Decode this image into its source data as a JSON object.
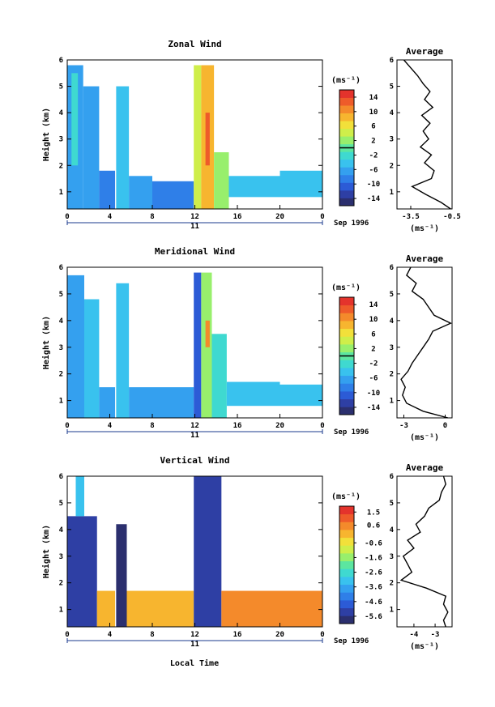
{
  "figure": {
    "date_label": "Sep 1996",
    "day_label": "11",
    "xlabel": "Local Time",
    "ylabel": "Height (km)",
    "unit_label": "(ms⁻¹)",
    "avg_title": "Average",
    "avg_xlabel": "(ms⁻¹)",
    "colormap": [
      "#2b2f6e",
      "#2e3fa4",
      "#2c5bd6",
      "#2f7fe8",
      "#34a0ef",
      "#39c2ee",
      "#3fd9d0",
      "#5ce6a0",
      "#98ef6c",
      "#cfee4a",
      "#f2e03a",
      "#f7b52f",
      "#f48a2b",
      "#ee5b2a",
      "#e4332c"
    ]
  },
  "chart_data": [
    {
      "type": "heatmap",
      "title": "Zonal Wind",
      "x_ticks": [
        "0",
        "4",
        "8",
        "12",
        "16",
        "20",
        "0"
      ],
      "xlim": [
        0,
        24
      ],
      "y_ticks": [
        "1",
        "2",
        "3",
        "4",
        "5",
        "6"
      ],
      "ylim": [
        0.35,
        6
      ],
      "colorbar_ticks": [
        "14",
        "10",
        "6",
        "2",
        "-2",
        "-6",
        "-10",
        "-14"
      ],
      "colorbar_range": [
        -16,
        16
      ],
      "colorbar_marker": 0,
      "regions": [
        {
          "t0": 0.0,
          "t1": 1.5,
          "z0": 0.35,
          "z1": 5.8,
          "v": -7
        },
        {
          "t0": 0.4,
          "t1": 1.0,
          "z0": 2.0,
          "z1": 5.5,
          "v": -3
        },
        {
          "t0": 1.5,
          "t1": 3.0,
          "z0": 0.35,
          "z1": 5.0,
          "v": -6
        },
        {
          "t0": 3.0,
          "t1": 4.5,
          "z0": 0.35,
          "z1": 1.8,
          "v": -8
        },
        {
          "t0": 4.6,
          "t1": 5.8,
          "z0": 0.35,
          "z1": 5.0,
          "v": -5
        },
        {
          "t0": 5.8,
          "t1": 8.0,
          "z0": 0.35,
          "z1": 1.6,
          "v": -7
        },
        {
          "t0": 8.0,
          "t1": 11.9,
          "z0": 0.35,
          "z1": 1.4,
          "v": -9
        },
        {
          "t0": 11.9,
          "t1": 12.6,
          "z0": 0.35,
          "z1": 5.8,
          "v": 4
        },
        {
          "t0": 12.6,
          "t1": 13.8,
          "z0": 0.35,
          "z1": 5.8,
          "v": 9
        },
        {
          "t0": 13.0,
          "t1": 13.4,
          "z0": 2.0,
          "z1": 4.0,
          "v": 13
        },
        {
          "t0": 13.8,
          "t1": 15.2,
          "z0": 0.35,
          "z1": 2.5,
          "v": 3
        },
        {
          "t0": 15.2,
          "t1": 20.0,
          "z0": 0.8,
          "z1": 1.6,
          "v": -5
        },
        {
          "t0": 20.0,
          "t1": 24.0,
          "z0": 0.8,
          "z1": 1.8,
          "v": -4
        }
      ],
      "avg": {
        "xlim": [
          -4.5,
          -0.5
        ],
        "x_ticks": [
          "-3.5",
          "-0.5"
        ],
        "x_tick_values": [
          -3.5,
          -0.5
        ],
        "z": [
          0.35,
          0.6,
          0.9,
          1.2,
          1.5,
          1.8,
          2.1,
          2.4,
          2.7,
          3.0,
          3.3,
          3.6,
          3.9,
          4.2,
          4.5,
          4.8,
          5.1,
          5.4,
          5.7,
          6.0
        ],
        "v": [
          -0.6,
          -1.3,
          -2.4,
          -3.4,
          -2.0,
          -1.8,
          -2.5,
          -2.0,
          -2.8,
          -2.2,
          -2.6,
          -2.1,
          -2.7,
          -1.9,
          -2.5,
          -2.1,
          -2.6,
          -3.0,
          -3.5,
          -4.0
        ]
      }
    },
    {
      "type": "heatmap",
      "title": "Meridional Wind",
      "x_ticks": [
        "0",
        "4",
        "8",
        "12",
        "16",
        "20",
        "0"
      ],
      "xlim": [
        0,
        24
      ],
      "y_ticks": [
        "1",
        "2",
        "3",
        "4",
        "5",
        "6"
      ],
      "ylim": [
        0.35,
        6
      ],
      "colorbar_ticks": [
        "14",
        "10",
        "6",
        "2",
        "-2",
        "-6",
        "-10",
        "-14"
      ],
      "colorbar_range": [
        -16,
        16
      ],
      "colorbar_marker": 0,
      "regions": [
        {
          "t0": 0.0,
          "t1": 1.6,
          "z0": 0.35,
          "z1": 5.7,
          "v": -6
        },
        {
          "t0": 1.6,
          "t1": 3.0,
          "z0": 0.35,
          "z1": 4.8,
          "v": -5
        },
        {
          "t0": 3.0,
          "t1": 4.5,
          "z0": 0.35,
          "z1": 1.5,
          "v": -7
        },
        {
          "t0": 4.6,
          "t1": 5.8,
          "z0": 0.35,
          "z1": 5.4,
          "v": -4
        },
        {
          "t0": 5.8,
          "t1": 11.9,
          "z0": 0.35,
          "z1": 1.5,
          "v": -6
        },
        {
          "t0": 11.9,
          "t1": 12.6,
          "z0": 0.35,
          "z1": 5.8,
          "v": -10
        },
        {
          "t0": 12.6,
          "t1": 13.6,
          "z0": 0.35,
          "z1": 5.8,
          "v": 3
        },
        {
          "t0": 13.0,
          "t1": 13.4,
          "z0": 3.0,
          "z1": 4.0,
          "v": 11
        },
        {
          "t0": 13.6,
          "t1": 15.0,
          "z0": 0.35,
          "z1": 3.5,
          "v": -3
        },
        {
          "t0": 15.0,
          "t1": 20.0,
          "z0": 0.8,
          "z1": 1.7,
          "v": -5
        },
        {
          "t0": 20.0,
          "t1": 24.0,
          "z0": 0.8,
          "z1": 1.6,
          "v": -4
        }
      ],
      "avg": {
        "xlim": [
          -3.5,
          0.5
        ],
        "x_ticks": [
          "-3",
          "0"
        ],
        "x_tick_values": [
          -3,
          0
        ],
        "z": [
          0.35,
          0.6,
          0.9,
          1.2,
          1.5,
          1.8,
          2.1,
          2.4,
          2.7,
          3.0,
          3.3,
          3.6,
          3.9,
          4.2,
          4.5,
          4.8,
          5.1,
          5.4,
          5.7,
          6.0
        ],
        "v": [
          0.2,
          -1.6,
          -2.8,
          -3.1,
          -2.9,
          -3.2,
          -2.7,
          -2.4,
          -2.0,
          -1.6,
          -1.2,
          -0.9,
          0.4,
          -0.8,
          -1.2,
          -1.6,
          -2.4,
          -2.1,
          -2.8,
          -2.5
        ]
      }
    },
    {
      "type": "heatmap",
      "title": "Vertical Wind",
      "x_ticks": [
        "0",
        "4",
        "8",
        "12",
        "16",
        "20",
        "0"
      ],
      "xlim": [
        0,
        24
      ],
      "y_ticks": [
        "1",
        "2",
        "3",
        "4",
        "5",
        "6"
      ],
      "ylim": [
        0.35,
        6
      ],
      "colorbar_ticks": [
        "1.5",
        "0.6",
        "-0.6",
        "-1.6",
        "-2.6",
        "-3.6",
        "-4.6",
        "-5.6"
      ],
      "colorbar_range": [
        -6.1,
        1.9
      ],
      "colorbar_marker": null,
      "regions": [
        {
          "t0": 0.0,
          "t1": 2.8,
          "z0": 0.35,
          "z1": 4.5,
          "v": -5.2
        },
        {
          "t0": 0.8,
          "t1": 1.6,
          "z0": 4.5,
          "z1": 6.0,
          "v": -3.4
        },
        {
          "t0": 2.8,
          "t1": 4.5,
          "z0": 0.35,
          "z1": 1.7,
          "v": 0.3
        },
        {
          "t0": 4.6,
          "t1": 5.6,
          "z0": 0.35,
          "z1": 4.2,
          "v": -5.8
        },
        {
          "t0": 5.6,
          "t1": 11.9,
          "z0": 0.35,
          "z1": 1.7,
          "v": 0.2
        },
        {
          "t0": 11.9,
          "t1": 14.5,
          "z0": 0.35,
          "z1": 6.0,
          "v": -5.5
        },
        {
          "t0": 14.5,
          "t1": 24.0,
          "z0": 0.35,
          "z1": 1.7,
          "v": 0.4
        }
      ],
      "avg": {
        "xlim": [
          -4.8,
          -2.2
        ],
        "x_ticks": [
          "-4",
          "-3"
        ],
        "x_tick_values": [
          -4,
          -3
        ],
        "z": [
          0.35,
          0.6,
          0.9,
          1.2,
          1.5,
          1.8,
          2.1,
          2.4,
          2.7,
          3.0,
          3.3,
          3.6,
          3.9,
          4.2,
          4.5,
          4.8,
          5.1,
          5.4,
          5.7,
          6.0
        ],
        "v": [
          -2.5,
          -2.6,
          -2.4,
          -2.6,
          -2.5,
          -3.4,
          -4.6,
          -4.1,
          -4.3,
          -4.5,
          -4.0,
          -4.3,
          -3.7,
          -3.9,
          -3.5,
          -3.3,
          -2.8,
          -2.7,
          -2.5,
          -2.6
        ]
      }
    }
  ]
}
